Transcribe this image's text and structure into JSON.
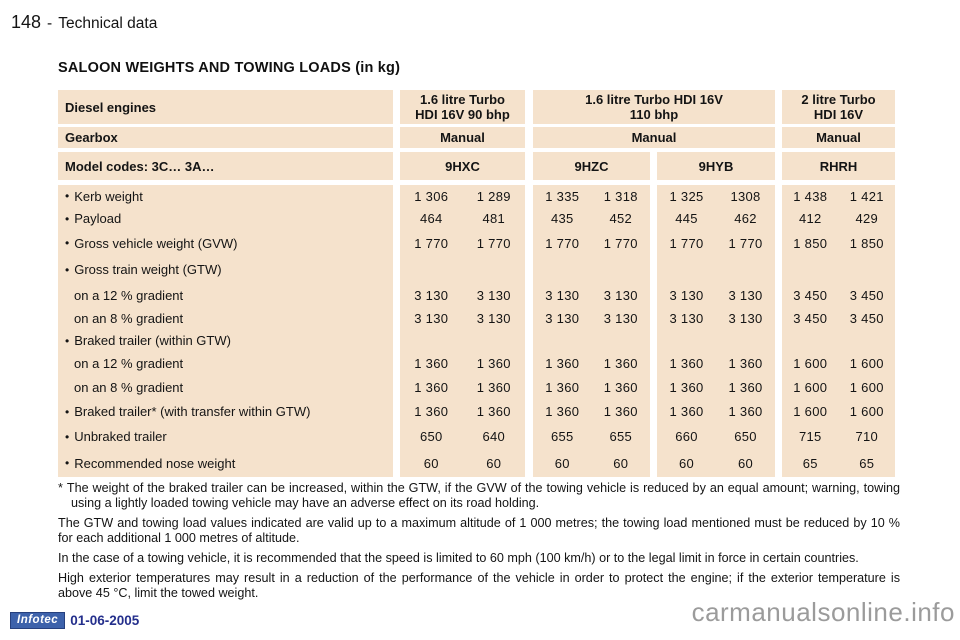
{
  "page": {
    "page_number": "148",
    "header_separator": "-",
    "section": "Technical data",
    "title": "SALOON WEIGHTS AND TOWING LOADS (in kg)"
  },
  "table": {
    "header": {
      "row1_label": "Diesel engines",
      "row2_label": "Gearbox",
      "row3_label": "Model codes: 3C… 3A…",
      "engines": [
        {
          "name_lines": [
            "1.6 litre Turbo",
            "HDI 16V 90 bhp"
          ],
          "gearbox": "Manual",
          "codes": [
            "9HXC"
          ]
        },
        {
          "name_lines": [
            "1.6 litre Turbo HDI 16V",
            "110 bhp"
          ],
          "gearbox": "Manual",
          "codes": [
            "9HZC",
            "9HYB"
          ]
        },
        {
          "name_lines": [
            "2 litre Turbo",
            "HDI 16V"
          ],
          "gearbox": "Manual",
          "codes": [
            "RHRH"
          ]
        }
      ]
    },
    "rows": [
      {
        "label": "Kerb weight",
        "sub": false,
        "values": [
          [
            "1 306",
            "1 289"
          ],
          [
            "1 335",
            "1 318"
          ],
          [
            "1 325",
            "1308"
          ],
          [
            "1 438",
            "1 421"
          ]
        ]
      },
      {
        "label": "Payload",
        "sub": false,
        "values": [
          [
            "464",
            "481"
          ],
          [
            "435",
            "452"
          ],
          [
            "445",
            "462"
          ],
          [
            "412",
            "429"
          ]
        ]
      },
      {
        "label": "Gross vehicle weight (GVW)",
        "sub": false,
        "values": [
          [
            "1 770",
            "1 770"
          ],
          [
            "1 770",
            "1 770"
          ],
          [
            "1 770",
            "1 770"
          ],
          [
            "1 850",
            "1 850"
          ]
        ]
      },
      {
        "label": "Gross train weight (GTW)",
        "sub": false,
        "values": [
          [
            "",
            ""
          ],
          [
            "",
            ""
          ],
          [
            "",
            ""
          ],
          [
            "",
            ""
          ]
        ]
      },
      {
        "label": "on a 12 % gradient",
        "sub": true,
        "values": [
          [
            "3 130",
            "3 130"
          ],
          [
            "3 130",
            "3 130"
          ],
          [
            "3 130",
            "3 130"
          ],
          [
            "3 450",
            "3 450"
          ]
        ]
      },
      {
        "label": "on an 8 % gradient",
        "sub": true,
        "values": [
          [
            "3 130",
            "3 130"
          ],
          [
            "3 130",
            "3 130"
          ],
          [
            "3 130",
            "3 130"
          ],
          [
            "3 450",
            "3 450"
          ]
        ]
      },
      {
        "label": "Braked trailer (within GTW)",
        "sub": false,
        "values": [
          [
            "",
            ""
          ],
          [
            "",
            ""
          ],
          [
            "",
            ""
          ],
          [
            "",
            ""
          ]
        ]
      },
      {
        "label": "on a 12 % gradient",
        "sub": true,
        "values": [
          [
            "1 360",
            "1 360"
          ],
          [
            "1 360",
            "1 360"
          ],
          [
            "1 360",
            "1 360"
          ],
          [
            "1 600",
            "1 600"
          ]
        ]
      },
      {
        "label": "on an 8 % gradient",
        "sub": true,
        "values": [
          [
            "1 360",
            "1 360"
          ],
          [
            "1 360",
            "1 360"
          ],
          [
            "1 360",
            "1 360"
          ],
          [
            "1 600",
            "1 600"
          ]
        ]
      },
      {
        "label": "Braked trailer* (with transfer within GTW)",
        "sub": false,
        "values": [
          [
            "1 360",
            "1 360"
          ],
          [
            "1 360",
            "1 360"
          ],
          [
            "1 360",
            "1 360"
          ],
          [
            "1 600",
            "1 600"
          ]
        ]
      },
      {
        "label": "Unbraked trailer",
        "sub": false,
        "values": [
          [
            "650",
            "640"
          ],
          [
            "655",
            "655"
          ],
          [
            "660",
            "650"
          ],
          [
            "715",
            "710"
          ]
        ]
      },
      {
        "label": "Recommended nose weight",
        "sub": false,
        "values": [
          [
            "60",
            "60"
          ],
          [
            "60",
            "60"
          ],
          [
            "60",
            "60"
          ],
          [
            "65",
            "65"
          ]
        ]
      }
    ]
  },
  "footnotes": [
    {
      "marker": "*",
      "text": "The weight of the braked trailer can be increased, within the GTW, if the GVW of the towing vehicle is reduced by an equal amount; warning, towing using a lightly loaded towing vehicle may have an adverse effect on its road holding."
    },
    {
      "marker": "",
      "text": "The GTW and towing load values indicated are valid up to a maximum altitude of 1 000 metres; the towing load mentioned must be reduced by 10 % for each additional 1 000 metres of altitude."
    },
    {
      "marker": "",
      "text": "In the case of a towing vehicle, it is recommended that the speed is limited to 60 mph (100 km/h) or to the legal limit in force in certain countries."
    },
    {
      "marker": "",
      "text": "High exterior temperatures may result in a reduction of the performance of the vehicle in order to protect the engine; if the exterior temperature is above 45 °C, limit the towed weight."
    }
  ],
  "footer": {
    "logo": "Infotec",
    "date": "01-06-2005",
    "watermark": "carmanualsonline.info"
  },
  "colors": {
    "cell_background": "#F5E2CC",
    "logo_background": "#3D62AB",
    "date_text": "#242F8C",
    "watermark_text": "#9B9B9B"
  }
}
